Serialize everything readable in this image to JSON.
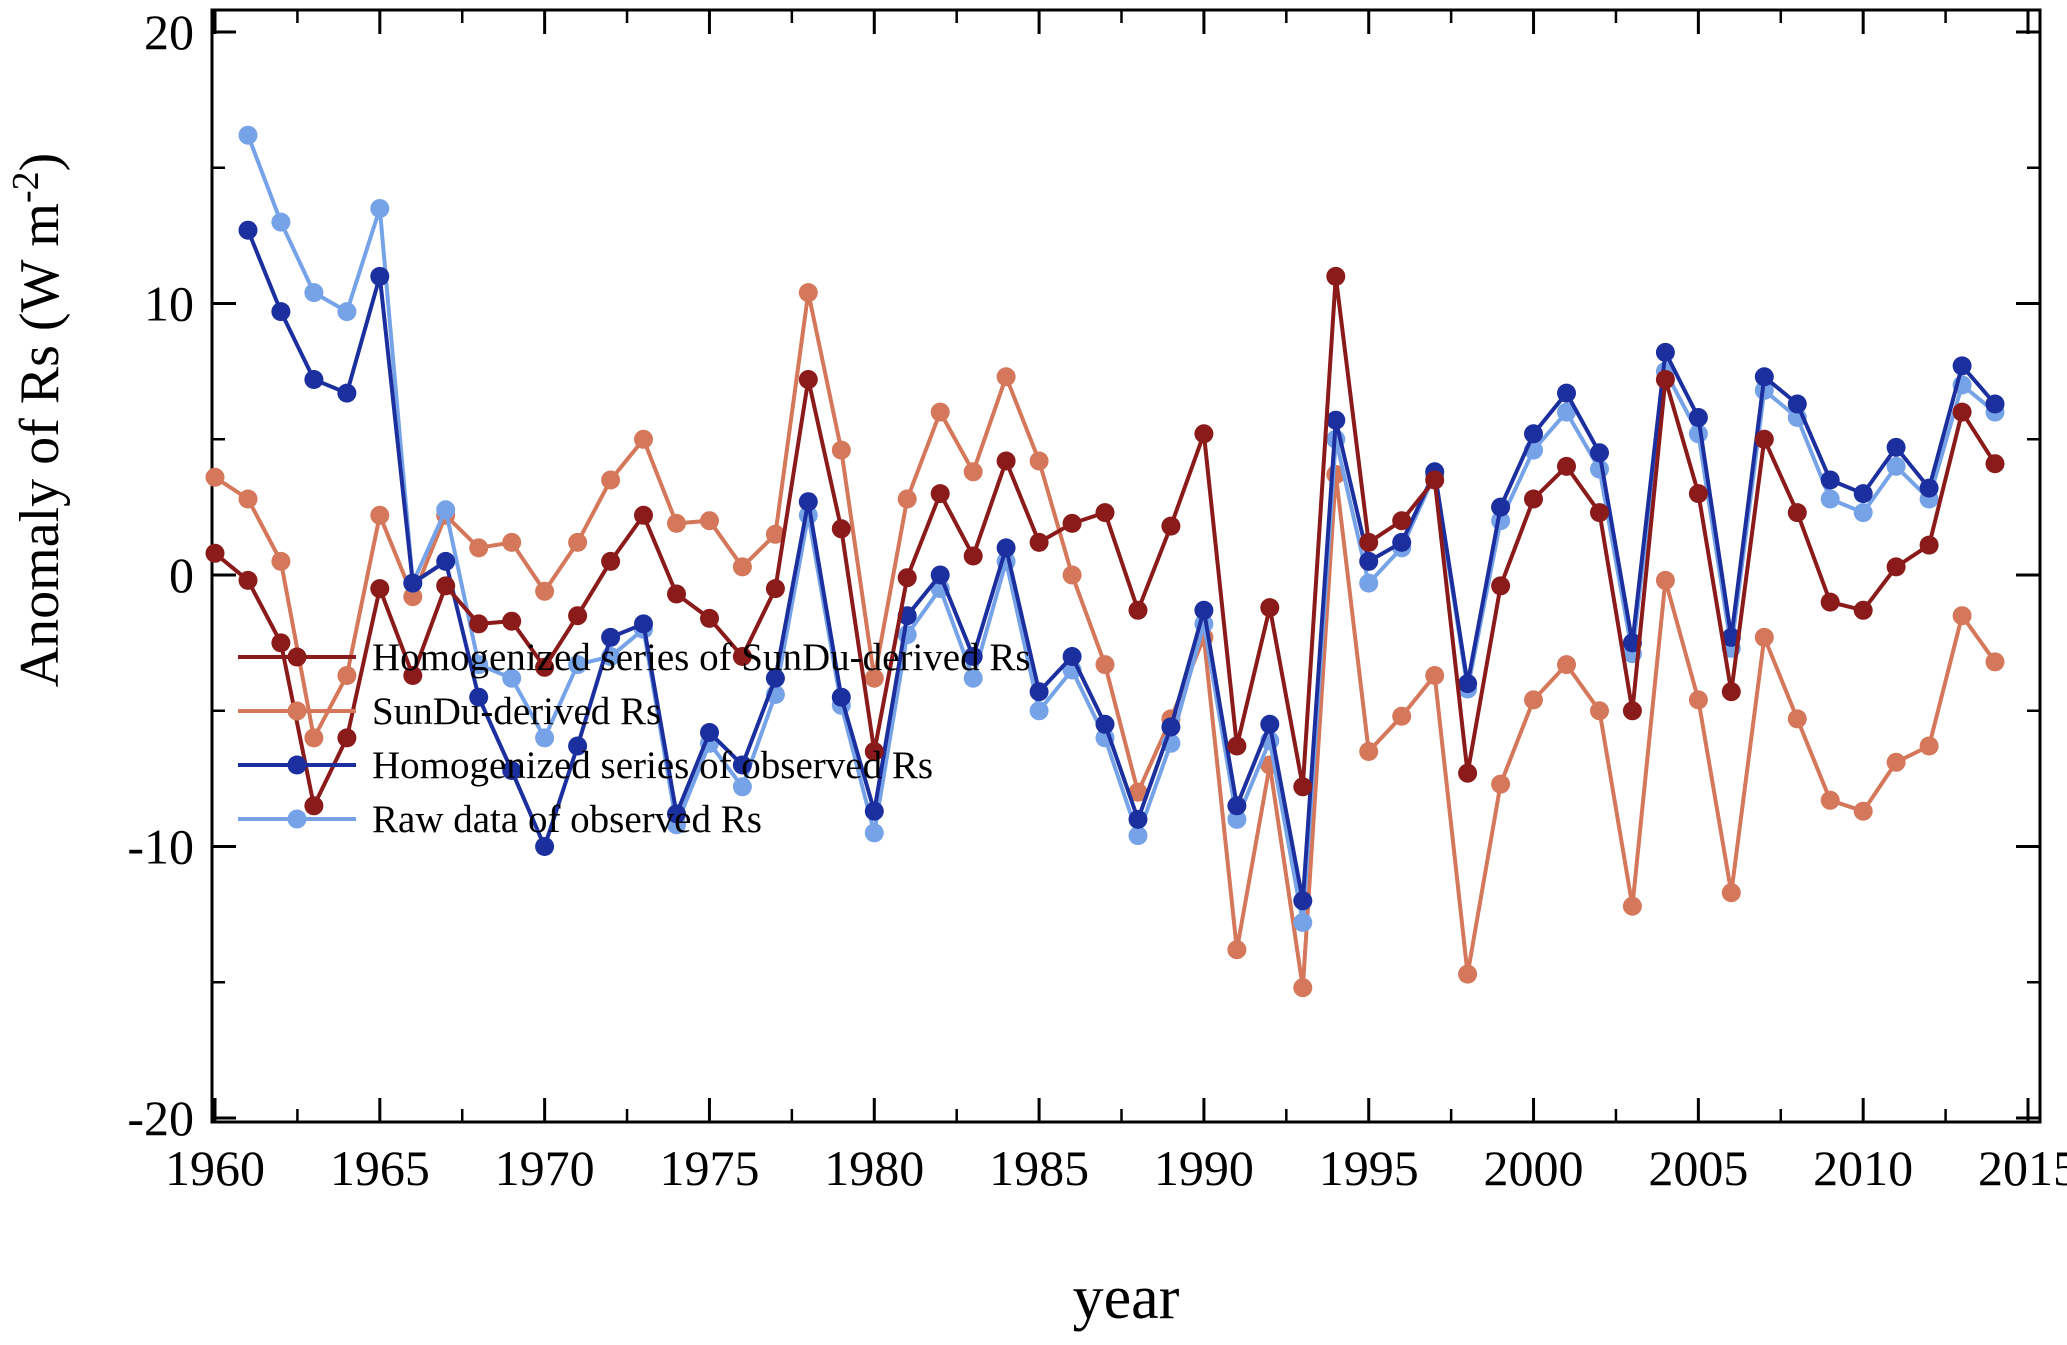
{
  "figure": {
    "xlabel": "year",
    "ylabel_main": "Anomaly of Rs (W m",
    "ylabel_sup": "-2",
    "ylabel_close": ")"
  },
  "chart_data": {
    "type": "line",
    "title": "",
    "xlabel": "year",
    "ylabel": "Anomaly of Rs (W m-2)",
    "grid": false,
    "legend_position": "lower-left",
    "xlim": [
      1960,
      2015
    ],
    "ylim": [
      -20,
      20
    ],
    "x_ticks": [
      1960,
      1965,
      1970,
      1975,
      1980,
      1985,
      1990,
      1995,
      2000,
      2005,
      2010,
      2015
    ],
    "y_ticks": [
      20,
      10,
      0,
      -10,
      -20
    ],
    "years": [
      1960,
      1961,
      1962,
      1963,
      1964,
      1965,
      1966,
      1967,
      1968,
      1969,
      1970,
      1971,
      1972,
      1973,
      1974,
      1975,
      1976,
      1977,
      1978,
      1979,
      1980,
      1981,
      1982,
      1983,
      1984,
      1985,
      1986,
      1987,
      1988,
      1989,
      1990,
      1991,
      1992,
      1993,
      1994,
      1995,
      1996,
      1997,
      1998,
      1999,
      2000,
      2001,
      2002,
      2003,
      2004,
      2005,
      2006,
      2007,
      2008,
      2009,
      2010,
      2011,
      2012,
      2013,
      2014
    ],
    "draw_order": [
      1,
      3,
      2,
      0
    ],
    "series": [
      {
        "name": "Homogenized series of SunDu-derived Rs",
        "color": "#8b1a1a",
        "values": [
          0.8,
          -0.2,
          -2.5,
          -8.5,
          -6.0,
          -0.5,
          -3.7,
          -0.4,
          -1.8,
          -1.7,
          -3.4,
          -1.5,
          0.5,
          2.2,
          -0.7,
          -1.6,
          -3.0,
          -0.5,
          7.2,
          1.7,
          -6.5,
          -0.1,
          3.0,
          0.7,
          4.2,
          1.2,
          1.9,
          2.3,
          -1.3,
          1.8,
          5.2,
          -6.3,
          -1.2,
          -7.8,
          11.0,
          1.2,
          2.0,
          3.5,
          -7.3,
          -0.4,
          2.8,
          4.0,
          2.3,
          -5.0,
          7.2,
          3.0,
          -4.3,
          5.0,
          2.3,
          -1.0,
          -1.3,
          0.3,
          1.1,
          6.0,
          4.1
        ]
      },
      {
        "name": "SunDu-derived Rs",
        "color": "#d4775a",
        "values": [
          3.6,
          2.8,
          0.5,
          -6.0,
          -3.7,
          2.2,
          -0.8,
          2.2,
          1.0,
          1.2,
          -0.6,
          1.2,
          3.5,
          5.0,
          1.9,
          2.0,
          0.3,
          1.5,
          10.4,
          4.6,
          -3.8,
          2.8,
          6.0,
          3.8,
          7.3,
          4.2,
          0.0,
          -3.3,
          -8.0,
          -5.3,
          -2.3,
          -13.8,
          -7.0,
          -15.2,
          3.7,
          -6.5,
          -5.2,
          -3.7,
          -14.7,
          -7.7,
          -4.6,
          -3.3,
          -5.0,
          -12.2,
          -0.2,
          -4.6,
          -11.7,
          -2.3,
          -5.3,
          -8.3,
          -8.7,
          -6.9,
          -6.3,
          -1.5,
          -3.2
        ]
      },
      {
        "name": "Homogenized series of observed Rs",
        "color": "#1c2f9e",
        "values": [
          null,
          12.7,
          9.7,
          7.2,
          6.7,
          11.0,
          -0.3,
          0.5,
          -4.5,
          -7.2,
          -10.0,
          -6.3,
          -2.3,
          -1.8,
          -8.8,
          -5.8,
          -7.0,
          -3.8,
          2.7,
          -4.5,
          -8.7,
          -1.5,
          0.0,
          -3.0,
          1.0,
          -4.3,
          -3.0,
          -5.5,
          -9.0,
          -5.6,
          -1.3,
          -8.5,
          -5.5,
          -12.0,
          5.7,
          0.5,
          1.2,
          3.8,
          -4.0,
          2.5,
          5.2,
          6.7,
          4.5,
          -2.5,
          8.2,
          5.8,
          -2.3,
          7.3,
          6.3,
          3.5,
          3.0,
          4.7,
          3.2,
          7.7,
          6.3
        ]
      },
      {
        "name": "Raw data of observed Rs",
        "color": "#76a3e8",
        "values": [
          null,
          16.2,
          13.0,
          10.4,
          9.7,
          13.5,
          -0.3,
          2.4,
          -3.3,
          -3.8,
          -6.0,
          -3.3,
          -3.0,
          -2.0,
          -9.2,
          -6.2,
          -7.8,
          -4.4,
          2.2,
          -4.8,
          -9.5,
          -2.2,
          -0.5,
          -3.8,
          0.5,
          -5.0,
          -3.5,
          -6.0,
          -9.6,
          -6.2,
          -1.8,
          -9.0,
          -6.1,
          -12.8,
          5.0,
          -0.3,
          1.0,
          3.7,
          -4.2,
          2.0,
          4.6,
          6.0,
          3.9,
          -2.9,
          7.5,
          5.2,
          -2.7,
          6.8,
          5.8,
          2.8,
          2.3,
          4.0,
          2.8,
          7.0,
          6.0
        ]
      }
    ]
  }
}
